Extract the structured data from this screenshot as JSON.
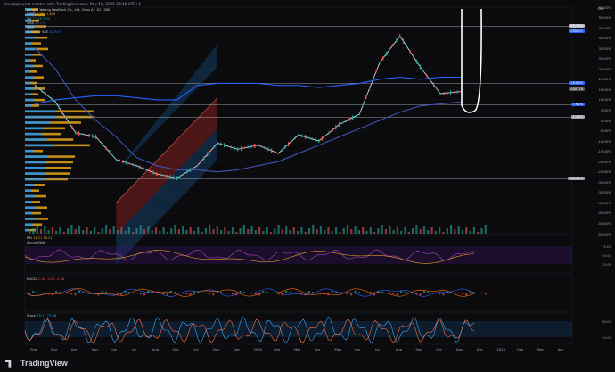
{
  "header": {
    "publish_note": "zaneqiqinwest created with TradingView.com, Nov 18, 2025 08:46 UTC+1",
    "symbol_line": "Jiangsu Yabang NeoDock Co., Ltd. Class A · 1D · SSE",
    "vrvp_label": "VRVP",
    "vrvp_values": "3.75K 1.81K",
    "vol_label": "Vol",
    "vol_values": "7.61K 5.54",
    "sma_label": "SMA",
    "sma_value": "28.175",
    "sma2_label": "SMA",
    "vs_label": "000001 · SSE",
    "vs_value": "42.94%"
  },
  "currency": "CNY",
  "price_tags": [
    {
      "text": "45.75%",
      "color": "#b9bcc4",
      "y": 45.75
    },
    {
      "text": "000001",
      "color": "#2962ff",
      "y": 42.94
    },
    {
      "text": "18.05%",
      "color": "#2962ff",
      "y": 18.05
    },
    {
      "text": "000176",
      "color": "#555",
      "y": 14.82
    },
    {
      "text": "7.62%",
      "color": "#2962ff",
      "y": 7.62
    },
    {
      "text": "1.42%",
      "color": "#9aa0aa",
      "y": 1.42
    },
    {
      "text": "-28.45%",
      "color": "#9aa0aa",
      "y": -28.45
    }
  ],
  "y_axis_labels": [
    "55.00%",
    "50.00%",
    "45.00%",
    "40.00%",
    "35.00%",
    "30.00%",
    "25.00%",
    "20.00%",
    "15.00%",
    "10.00%",
    "5.00%",
    "0.00%",
    "-5.00%",
    "-10.00%",
    "-15.00%",
    "-20.00%",
    "-25.00%",
    "-30.00%",
    "-35.00%",
    "-40.00%",
    "-45.00%",
    "-50.00%",
    "-55.00%"
  ],
  "x_axis_labels": [
    "Feb",
    "Mar",
    "Apr",
    "May",
    "Jun",
    "Jul",
    "Aug",
    "Sep",
    "Oct",
    "Nov",
    "Dec",
    "2025",
    "Feb",
    "Mar",
    "Apr",
    "May",
    "Jun",
    "Jul",
    "Aug",
    "Sep",
    "Oct",
    "Nov",
    "Dec",
    "2026",
    "Feb",
    "Mar",
    "Apr"
  ],
  "subpanes": {
    "rsi": {
      "label": "RSI",
      "values": "14 21 38.21",
      "label2": "Accum/Dist",
      "ticks": [
        "75.00",
        "50.00",
        "25.00"
      ]
    },
    "macd": {
      "label": "MACD",
      "values": "-0.08 -0.00 -0.38"
    },
    "stoch": {
      "label": "Stoch",
      "values": "79.17 77.66",
      "ticks": [
        "80.00",
        "40.00"
      ]
    }
  },
  "footer": {
    "brand": "TradingView"
  },
  "colors": {
    "up": "#26a69a",
    "down": "#ef5350",
    "blue_channel": "#1e88e5",
    "red_channel": "#c62828",
    "volume_profile": "#e5a619",
    "sma": "#3f51b5",
    "compare": "#2962ff"
  },
  "chart_data": {
    "type": "line",
    "title": "Jiangsu Yabang NeoDock Co., Ltd. Class A · 1D · SSE",
    "y_unit": "%",
    "ylim": [
      -55,
      55
    ],
    "x": [
      "Feb",
      "Mar",
      "Apr",
      "May",
      "Jun",
      "Jul",
      "Aug",
      "Sep",
      "Oct",
      "Nov",
      "Dec",
      "2025",
      "Feb",
      "Mar",
      "Apr",
      "May",
      "Jun",
      "Jul",
      "Aug",
      "Sep",
      "Oct",
      "Nov"
    ],
    "series": [
      {
        "values": [
          17,
          9,
          -6,
          -8,
          -19,
          -22,
          -26,
          -28,
          -22,
          -11,
          -14,
          -12,
          -16,
          -7,
          -10,
          -2,
          3,
          28,
          41,
          26,
          13,
          14
        ]
      },
      {
        "values": [
          35,
          25,
          10,
          0,
          -8,
          -18,
          -22,
          -24,
          -24,
          -25,
          -24,
          -22,
          -20,
          -16,
          -12,
          -8,
          -4,
          0,
          4,
          7,
          8,
          9
        ]
      },
      {
        "values": [
          8,
          10,
          11,
          12,
          12,
          11,
          10,
          10,
          17,
          18,
          18,
          18,
          17,
          17,
          16,
          17,
          18,
          20,
          21,
          20,
          21,
          21
        ]
      }
    ],
    "channel_lines": [
      {
        "start": {
          "x": "Jun",
          "y": -40
        },
        "end": {
          "x": "Nov",
          "y": 11
        }
      },
      {
        "start": {
          "x": "Jun",
          "y": -25
        },
        "end": {
          "x": "Nov",
          "y": 37
        }
      }
    ],
    "horizontal_levels": [
      45.75,
      18.05,
      7.62,
      1.42,
      -28.45
    ],
    "volume_profile_note": "VRVP",
    "grid": true
  }
}
